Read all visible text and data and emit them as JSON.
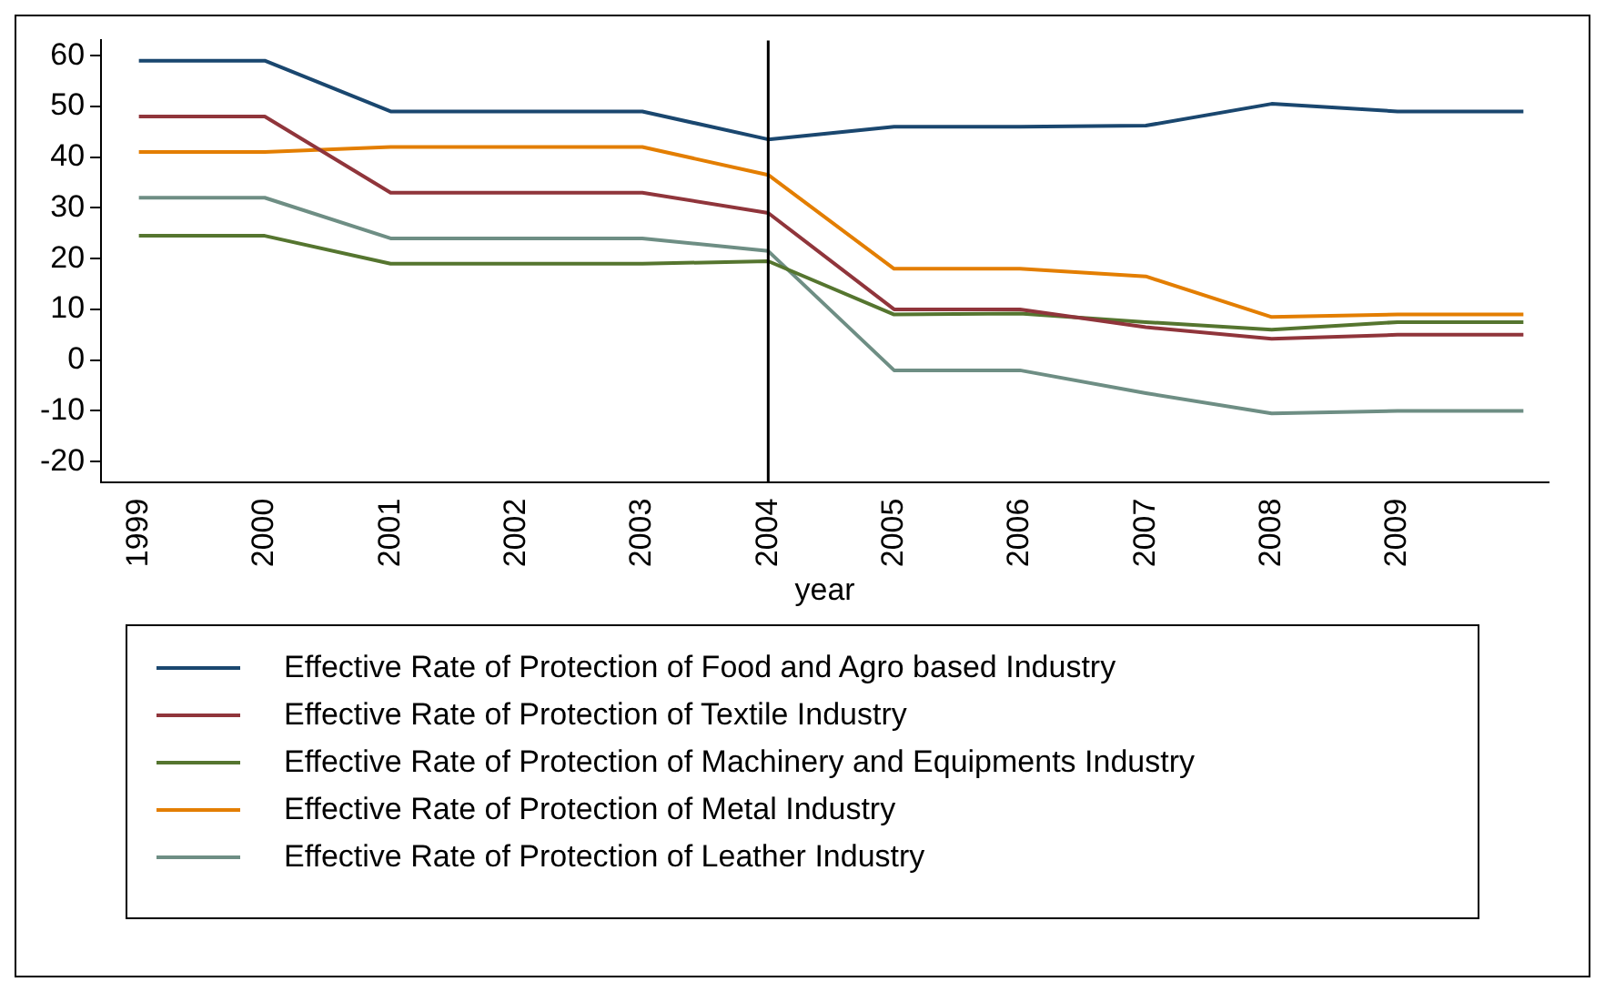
{
  "chart_data": {
    "type": "line",
    "xlabel": "year",
    "x": [
      1999,
      2000,
      2001,
      2002,
      2003,
      2004,
      2005,
      2006,
      2007,
      2008,
      2009,
      2010
    ],
    "series": [
      {
        "name": "Effective Rate of Protection of Food and Agro based Industry",
        "color": "#1a476f",
        "values": [
          59,
          59,
          49,
          49,
          49,
          43.5,
          46,
          46,
          46.2,
          50.5,
          49,
          49
        ]
      },
      {
        "name": "Effective Rate of Protection of Textile Industry",
        "color": "#90353b",
        "values": [
          48,
          48,
          33,
          33,
          33,
          29,
          10,
          10,
          6.5,
          4.2,
          5,
          5
        ]
      },
      {
        "name": "Effective Rate of Protection of Machinery and Equipments Industry",
        "color": "#55752f",
        "values": [
          24.5,
          24.5,
          19,
          19,
          19,
          19.5,
          9,
          9.2,
          7.5,
          6,
          7.5,
          7.5
        ]
      },
      {
        "name": "Effective Rate of Protection of Metal Industry",
        "color": "#e37e00",
        "values": [
          41,
          41,
          42,
          42,
          42,
          36.5,
          18,
          18,
          16.5,
          8.5,
          9,
          9
        ]
      },
      {
        "name": "Effective Rate of Protection of Leather Industry",
        "color": "#6e8e84",
        "values": [
          32,
          32,
          24,
          24,
          24,
          21.5,
          -2,
          -2,
          -6.5,
          -10.5,
          -10,
          -10
        ]
      }
    ],
    "xlim": [
      1998.7,
      2010.2
    ],
    "xticks": [
      1999,
      2000,
      2001,
      2002,
      2003,
      2004,
      2005,
      2006,
      2007,
      2008,
      2009
    ],
    "ylim": [
      -24,
      63
    ],
    "yticks": [
      -20,
      -10,
      0,
      10,
      20,
      30,
      40,
      50,
      60
    ],
    "ref_lines": [
      {
        "axis": "x",
        "value": 2004,
        "color": "#000000"
      }
    ],
    "grid": false,
    "legend": "bottom",
    "marker": "none",
    "line_style": "solid"
  }
}
